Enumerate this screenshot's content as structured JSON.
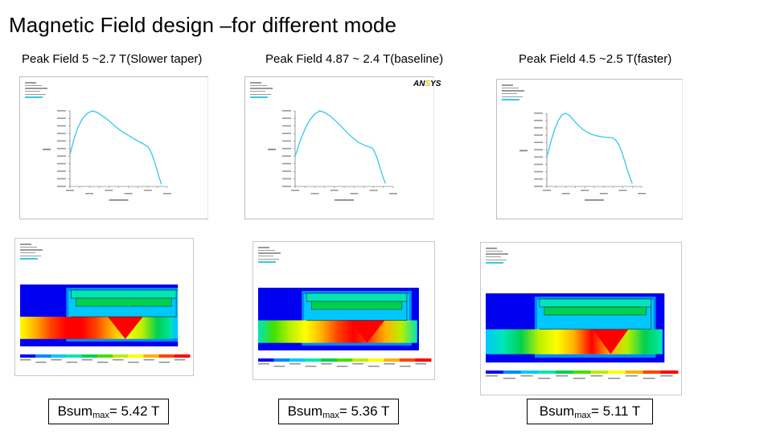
{
  "title": "Magnetic Field design –for different mode",
  "columns": [
    {
      "heading": "Peak Field 5 ~2.7 T(Slower taper)",
      "bsum_prefix": "Bsum",
      "bsum_sub": "max",
      "bsum_value": "= 5.42 T",
      "chart_data": {
        "type": "line",
        "curve": [
          [
            0.0,
            0.42
          ],
          [
            0.04,
            0.62
          ],
          [
            0.08,
            0.78
          ],
          [
            0.13,
            0.9
          ],
          [
            0.18,
            0.97
          ],
          [
            0.23,
            1.0
          ],
          [
            0.28,
            0.98
          ],
          [
            0.34,
            0.93
          ],
          [
            0.4,
            0.87
          ],
          [
            0.46,
            0.8
          ],
          [
            0.52,
            0.74
          ],
          [
            0.57,
            0.7
          ],
          [
            0.62,
            0.66
          ],
          [
            0.66,
            0.63
          ],
          [
            0.7,
            0.6
          ],
          [
            0.73,
            0.58
          ],
          [
            0.76,
            0.56
          ],
          [
            0.78,
            0.54
          ],
          [
            0.8,
            0.53
          ],
          [
            0.82,
            0.49
          ],
          [
            0.85,
            0.4
          ],
          [
            0.88,
            0.28
          ],
          [
            0.91,
            0.15
          ],
          [
            0.93,
            0.07
          ],
          [
            0.94,
            0.03
          ]
        ]
      }
    },
    {
      "heading": "Peak Field 4.87 ~ 2.4 T(baseline)",
      "bsum_prefix": "Bsum",
      "bsum_sub": "max",
      "bsum_value": "= 5.36 T",
      "chart_data": {
        "type": "line",
        "curve": [
          [
            0.0,
            0.4
          ],
          [
            0.05,
            0.6
          ],
          [
            0.1,
            0.76
          ],
          [
            0.15,
            0.88
          ],
          [
            0.2,
            0.96
          ],
          [
            0.25,
            1.0
          ],
          [
            0.3,
            0.98
          ],
          [
            0.36,
            0.93
          ],
          [
            0.42,
            0.86
          ],
          [
            0.48,
            0.78
          ],
          [
            0.54,
            0.7
          ],
          [
            0.6,
            0.63
          ],
          [
            0.65,
            0.58
          ],
          [
            0.7,
            0.55
          ],
          [
            0.74,
            0.53
          ],
          [
            0.77,
            0.52
          ],
          [
            0.79,
            0.5
          ],
          [
            0.81,
            0.46
          ],
          [
            0.84,
            0.36
          ],
          [
            0.87,
            0.23
          ],
          [
            0.9,
            0.11
          ],
          [
            0.92,
            0.04
          ]
        ]
      }
    },
    {
      "heading": "Peak Field 4.5 ~2.5 T(faster)",
      "bsum_prefix": "Bsum",
      "bsum_sub": "max",
      "bsum_value": "= 5.11 T",
      "chart_data": {
        "type": "line",
        "curve": [
          [
            0.0,
            0.4
          ],
          [
            0.04,
            0.6
          ],
          [
            0.08,
            0.77
          ],
          [
            0.12,
            0.9
          ],
          [
            0.16,
            0.98
          ],
          [
            0.2,
            1.0
          ],
          [
            0.24,
            0.97
          ],
          [
            0.28,
            0.91
          ],
          [
            0.33,
            0.84
          ],
          [
            0.38,
            0.78
          ],
          [
            0.43,
            0.74
          ],
          [
            0.48,
            0.71
          ],
          [
            0.53,
            0.69
          ],
          [
            0.58,
            0.68
          ],
          [
            0.62,
            0.67
          ],
          [
            0.66,
            0.67
          ],
          [
            0.7,
            0.66
          ],
          [
            0.73,
            0.63
          ],
          [
            0.76,
            0.57
          ],
          [
            0.79,
            0.47
          ],
          [
            0.82,
            0.35
          ],
          [
            0.85,
            0.22
          ],
          [
            0.88,
            0.11
          ],
          [
            0.9,
            0.04
          ]
        ]
      }
    }
  ],
  "colors": {
    "curve": "#33c7ee",
    "contour_bands": [
      "#0000ff",
      "#0088ff",
      "#00c8ff",
      "#00e6b4",
      "#00d050",
      "#44e000",
      "#b8f000",
      "#ffff00",
      "#ffb000",
      "#ff4400",
      "#ff0000"
    ]
  },
  "icons": [
    "ansys-logo"
  ]
}
